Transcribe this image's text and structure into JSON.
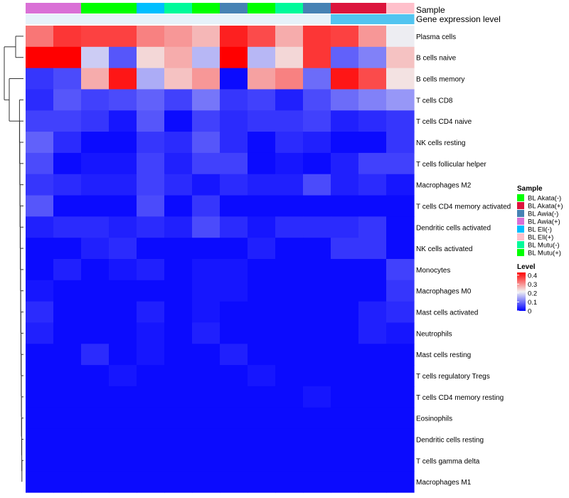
{
  "chart_data": {
    "type": "heatmap",
    "title": "",
    "row_labels": [
      "Plasma cells",
      "B cells naive",
      "B cells memory",
      "T cells CD8",
      "T cells CD4 naive",
      "NK cells resting",
      "T cells follicular helper",
      "Macrophages M2",
      "T cells CD4 memory activated",
      "Dendritic cells activated",
      "NK cells activated",
      "Monocytes",
      "Macrophages M0",
      "Mast cells activated",
      "Neutrophils",
      "Mast cells resting",
      "T cells regulatory  Tregs",
      "T cells CD4 memory resting",
      "Eosinophils",
      "Dendritic cells resting",
      "T cells gamma delta",
      "Macrophages M1"
    ],
    "column_samples": [
      "BL Awia(+)",
      "BL Awia(+)",
      "BL Mutu(+)",
      "BL Mutu(+)",
      "BL Eli(-)",
      "BL Mutu(-)",
      "BL Mutu(+)",
      "BL Awia(-)",
      "BL Mutu(+)",
      "BL Mutu(-)",
      "BL Awia(-)",
      "BL Akata(+)",
      "BL Akata(+)",
      "BL Eli(+)"
    ],
    "column_expression": [
      "high",
      "high",
      "high",
      "high",
      "high",
      "high",
      "high",
      "high",
      "high",
      "high",
      "high",
      "low",
      "low",
      "low"
    ],
    "annotation_tracks": [
      "Sample",
      "Gene expression level"
    ],
    "values": [
      [
        0.34,
        0.4,
        0.39,
        0.39,
        0.33,
        0.31,
        0.28,
        0.42,
        0.38,
        0.29,
        0.4,
        0.39,
        0.31,
        0.22
      ],
      [
        0.45,
        0.45,
        0.19,
        0.08,
        0.25,
        0.29,
        0.17,
        0.45,
        0.17,
        0.25,
        0.4,
        0.09,
        0.12,
        0.27
      ],
      [
        0.05,
        0.07,
        0.29,
        0.43,
        0.16,
        0.27,
        0.31,
        0.01,
        0.3,
        0.33,
        0.1,
        0.43,
        0.38,
        0.24
      ],
      [
        0.04,
        0.08,
        0.06,
        0.07,
        0.09,
        0.06,
        0.11,
        0.05,
        0.06,
        0.03,
        0.07,
        0.1,
        0.12,
        0.14
      ],
      [
        0.06,
        0.06,
        0.05,
        0.02,
        0.08,
        0.01,
        0.06,
        0.04,
        0.05,
        0.05,
        0.06,
        0.03,
        0.04,
        0.05
      ],
      [
        0.09,
        0.04,
        0.01,
        0.01,
        0.05,
        0.04,
        0.08,
        0.04,
        0.01,
        0.04,
        0.03,
        0.01,
        0.01,
        0.05
      ],
      [
        0.07,
        0.01,
        0.02,
        0.02,
        0.06,
        0.03,
        0.06,
        0.06,
        0.01,
        0.02,
        0.01,
        0.03,
        0.06,
        0.06
      ],
      [
        0.05,
        0.04,
        0.03,
        0.03,
        0.06,
        0.04,
        0.02,
        0.04,
        0.03,
        0.03,
        0.07,
        0.03,
        0.04,
        0.02
      ],
      [
        0.08,
        0.01,
        0.01,
        0.01,
        0.07,
        0.01,
        0.05,
        0.01,
        0.01,
        0.01,
        0.01,
        0.01,
        0.01,
        0.01
      ],
      [
        0.03,
        0.04,
        0.04,
        0.03,
        0.04,
        0.03,
        0.07,
        0.04,
        0.02,
        0.04,
        0.04,
        0.04,
        0.05,
        0.01
      ],
      [
        0.01,
        0.01,
        0.03,
        0.04,
        0.01,
        0.01,
        0.01,
        0.01,
        0.03,
        0.01,
        0.01,
        0.05,
        0.05,
        0.01
      ],
      [
        0.01,
        0.03,
        0.01,
        0.02,
        0.03,
        0.01,
        0.02,
        0.02,
        0.01,
        0.01,
        0.01,
        0.01,
        0.01,
        0.06
      ],
      [
        0.02,
        0.01,
        0.01,
        0.01,
        0.01,
        0.01,
        0.02,
        0.02,
        0.01,
        0.01,
        0.01,
        0.01,
        0.01,
        0.05
      ],
      [
        0.04,
        0.01,
        0.01,
        0.01,
        0.03,
        0.01,
        0.02,
        0.01,
        0.01,
        0.01,
        0.01,
        0.01,
        0.03,
        0.04
      ],
      [
        0.03,
        0.01,
        0.01,
        0.01,
        0.02,
        0.01,
        0.03,
        0.01,
        0.01,
        0.01,
        0.01,
        0.01,
        0.03,
        0.02
      ],
      [
        0.01,
        0.01,
        0.04,
        0.01,
        0.02,
        0.01,
        0.01,
        0.03,
        0.01,
        0.01,
        0.01,
        0.01,
        0.01,
        0.01
      ],
      [
        0.01,
        0.01,
        0.01,
        0.02,
        0.01,
        0.01,
        0.01,
        0.01,
        0.02,
        0.01,
        0.01,
        0.01,
        0.01,
        0.01
      ],
      [
        0.01,
        0.01,
        0.01,
        0.01,
        0.01,
        0.01,
        0.01,
        0.01,
        0.01,
        0.01,
        0.02,
        0.01,
        0.01,
        0.01
      ],
      [
        0.01,
        0.01,
        0.01,
        0.01,
        0.01,
        0.01,
        0.01,
        0.01,
        0.01,
        0.01,
        0.01,
        0.01,
        0.01,
        0.01
      ],
      [
        0.01,
        0.01,
        0.01,
        0.01,
        0.01,
        0.01,
        0.01,
        0.01,
        0.01,
        0.01,
        0.01,
        0.01,
        0.01,
        0.01
      ],
      [
        0.01,
        0.01,
        0.01,
        0.01,
        0.01,
        0.01,
        0.01,
        0.01,
        0.01,
        0.01,
        0.01,
        0.01,
        0.01,
        0.01
      ],
      [
        0.01,
        0.01,
        0.01,
        0.01,
        0.01,
        0.01,
        0.01,
        0.01,
        0.01,
        0.01,
        0.01,
        0.01,
        0.01,
        0.01
      ]
    ],
    "color_scale": {
      "low": "#0000ff",
      "mid": "#f2f2f2",
      "high": "#ff0000",
      "range": [
        0,
        0.45
      ]
    },
    "legend": {
      "sample_title": "Sample",
      "samples": [
        {
          "label": "BL Akata(-)",
          "color": "#00ff00"
        },
        {
          "label": "BL Akata(+)",
          "color": "#dc143c"
        },
        {
          "label": "BL Awia(-)",
          "color": "#4682b4"
        },
        {
          "label": "BL Awia(+)",
          "color": "#da70d6"
        },
        {
          "label": "BL Eli(-)",
          "color": "#00bfff"
        },
        {
          "label": "BL Eli(+)",
          "color": "#ffc0cb"
        },
        {
          "label": "BL Mutu(-)",
          "color": "#00fa9a"
        },
        {
          "label": "BL Mutu(+)",
          "color": "#00ff00"
        }
      ],
      "level_title": "Level",
      "level_ticks": [
        0.4,
        0.3,
        0.2,
        0.1,
        0
      ]
    },
    "expression_colors": {
      "high": "#e6f2fa",
      "low": "#52c4f0"
    }
  }
}
